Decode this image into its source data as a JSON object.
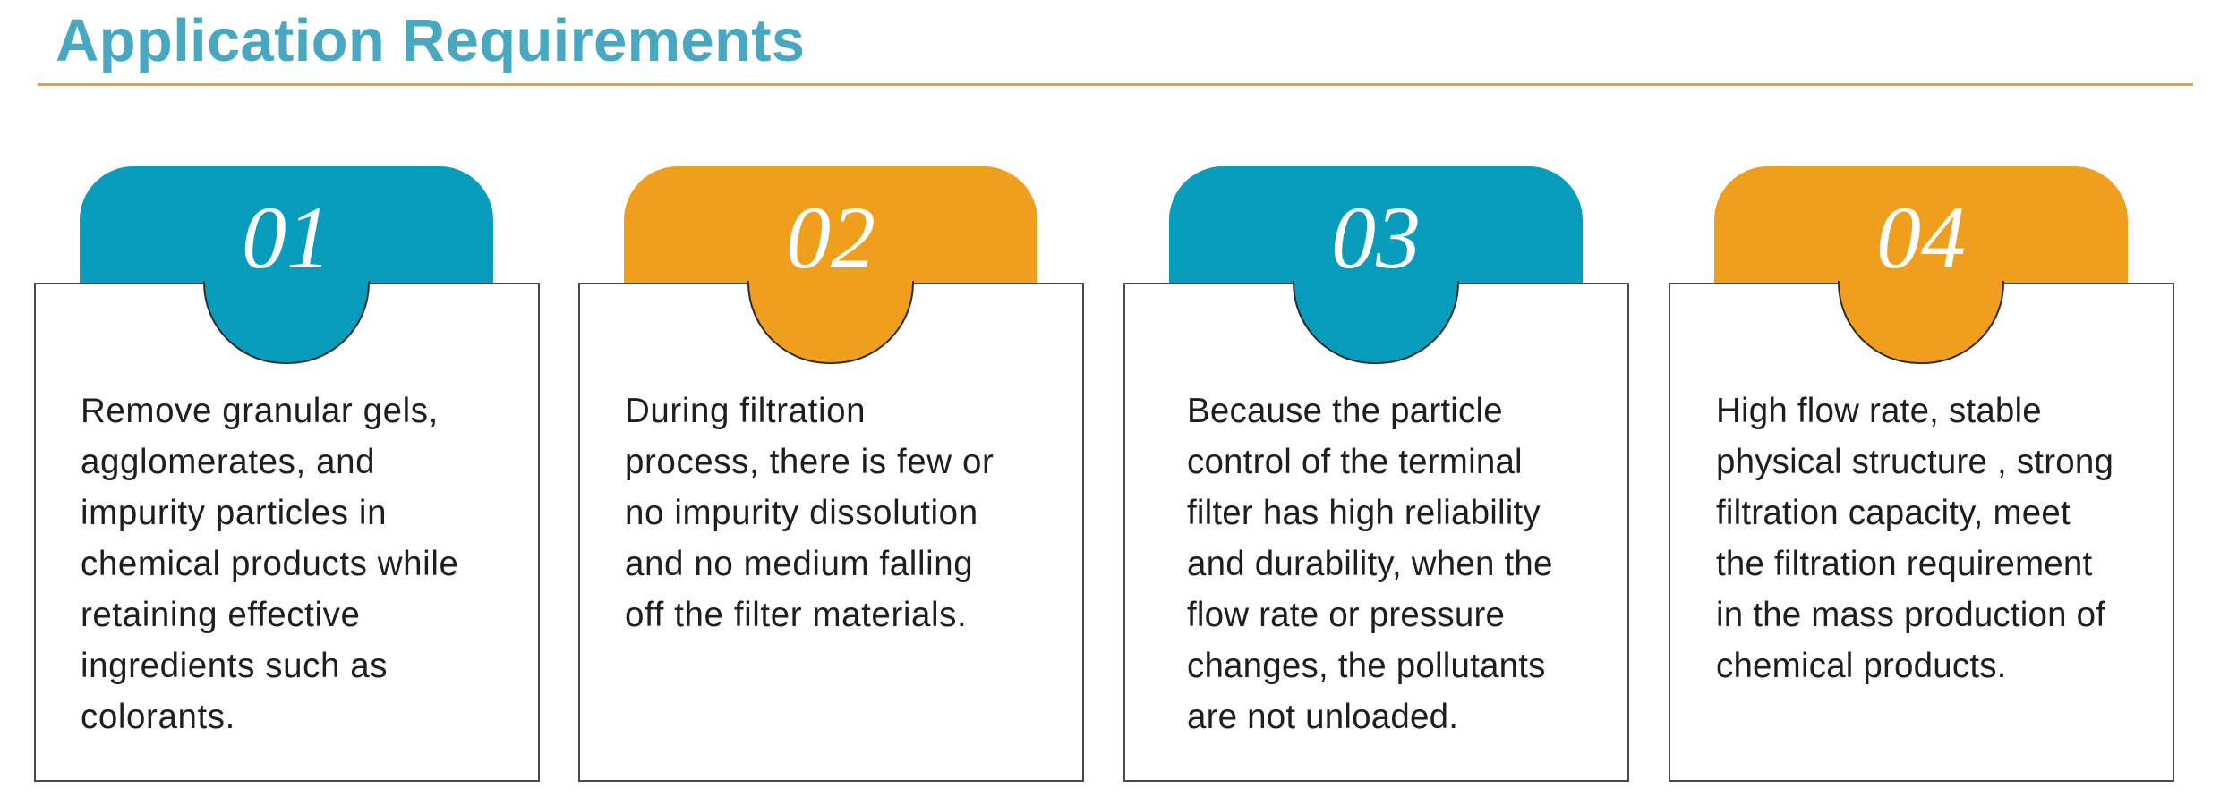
{
  "header": {
    "title": "Application Requirements"
  },
  "colors": {
    "title": "#48a7c1",
    "rule": "#f0a028",
    "blue": "#079cbb",
    "orange": "#f09e1e"
  },
  "cards": [
    {
      "number": "01",
      "accent": "blue",
      "text": "Remove granular gels,\nagglomerates, and\nimpurity particles in\nchemical products while\nretaining effective\ningredients such as\ncolorants."
    },
    {
      "number": "02",
      "accent": "orange",
      "text": "During filtration\nprocess, there is few or\nno impurity dissolution\nand no medium falling\noff the filter materials."
    },
    {
      "number": "03",
      "accent": "blue",
      "text": "Because the particle\ncontrol of the terminal\nfilter has high reliability\nand durability, when the\nflow rate or pressure\nchanges, the pollutants\nare not unloaded."
    },
    {
      "number": "04",
      "accent": "orange",
      "text": "High flow rate, stable\nphysical structure , strong\nfiltration capacity, meet\nthe filtration requirement\nin the mass production of\nchemical products."
    }
  ]
}
